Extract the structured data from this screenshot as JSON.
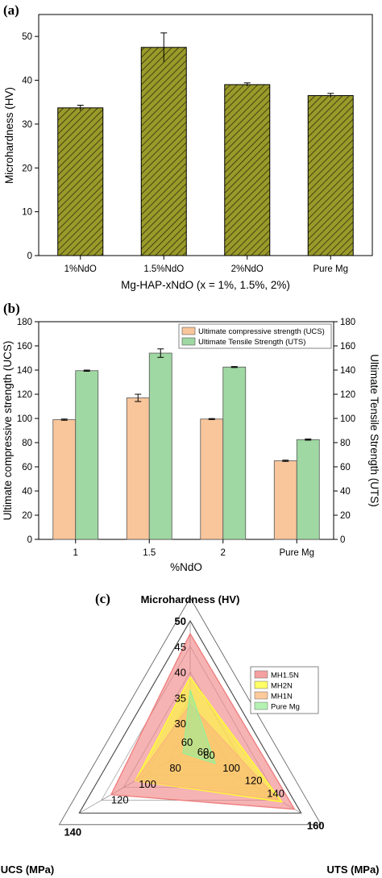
{
  "chart_data": [
    {
      "panel": "(a)",
      "type": "bar",
      "categories": [
        "1%NdO",
        "1.5%NdO",
        "2%NdO",
        "Pure Mg"
      ],
      "values": [
        33.7,
        47.5,
        39.0,
        36.5
      ],
      "errors": [
        0.6,
        3.3,
        0.4,
        0.5
      ],
      "xlabel": "Mg-HAP-xNdO (x = 1%, 1.5%, 2%)",
      "ylabel": "Microhardness (HV)",
      "ylim": [
        0,
        55
      ],
      "yticks": [
        0,
        10,
        20,
        30,
        40,
        50
      ],
      "bar_color": "#9a9a2b",
      "hatch": "diagonal",
      "grid": false
    },
    {
      "panel": "(b)",
      "type": "bar",
      "categories": [
        "1",
        "1.5",
        "2",
        "Pure Mg"
      ],
      "series": [
        {
          "name": "Ultimate compressive strength (UCS)",
          "values": [
            99,
            117,
            99.5,
            65
          ],
          "errors": [
            0.5,
            3.0,
            0.4,
            0.5
          ],
          "color": "#f9c59b"
        },
        {
          "name": "Ultimate Tensile Strength (UTS)",
          "values": [
            139.5,
            154,
            142.5,
            82.5
          ],
          "errors": [
            0.5,
            3.5,
            0.4,
            0.5
          ],
          "color": "#9fd8a2"
        }
      ],
      "xlabel": "%NdO",
      "ylabel": "Ultimate compressive strength (UCS)",
      "y2label": "Ultimate Tensile Strength (UTS)",
      "ylim": [
        0,
        180
      ],
      "yticks": [
        0,
        20,
        40,
        60,
        80,
        100,
        120,
        140,
        160,
        180
      ],
      "legend": "top-right",
      "grid": false
    },
    {
      "panel": "(c)",
      "type": "radar",
      "axes": [
        {
          "name": "Microhardness (HV)",
          "min": 25,
          "max": 50,
          "ticks": [
            "30",
            "35",
            "40",
            "45",
            "50"
          ]
        },
        {
          "name": "UTS (MPa)",
          "min": 60,
          "max": 160,
          "ticks": [
            "60",
            "80",
            "100",
            "120",
            "140",
            "160"
          ]
        },
        {
          "name": "UCS (MPa)",
          "min": 60,
          "max": 140,
          "ticks": [
            "60",
            "80",
            "100",
            "120",
            "140"
          ]
        }
      ],
      "series": [
        {
          "name": "MH1.5N",
          "values": [
            47.5,
            154,
            117
          ],
          "color": "#f08080"
        },
        {
          "name": "MH2N",
          "values": [
            39,
            142.5,
            99.5
          ],
          "color": "#ffff33"
        },
        {
          "name": "MH1N",
          "values": [
            33.7,
            139.5,
            99
          ],
          "color": "#fbb87a"
        },
        {
          "name": "Pure Mg",
          "values": [
            36.5,
            82.5,
            65
          ],
          "color": "#99ee99"
        }
      ],
      "legend": "top-right"
    }
  ]
}
